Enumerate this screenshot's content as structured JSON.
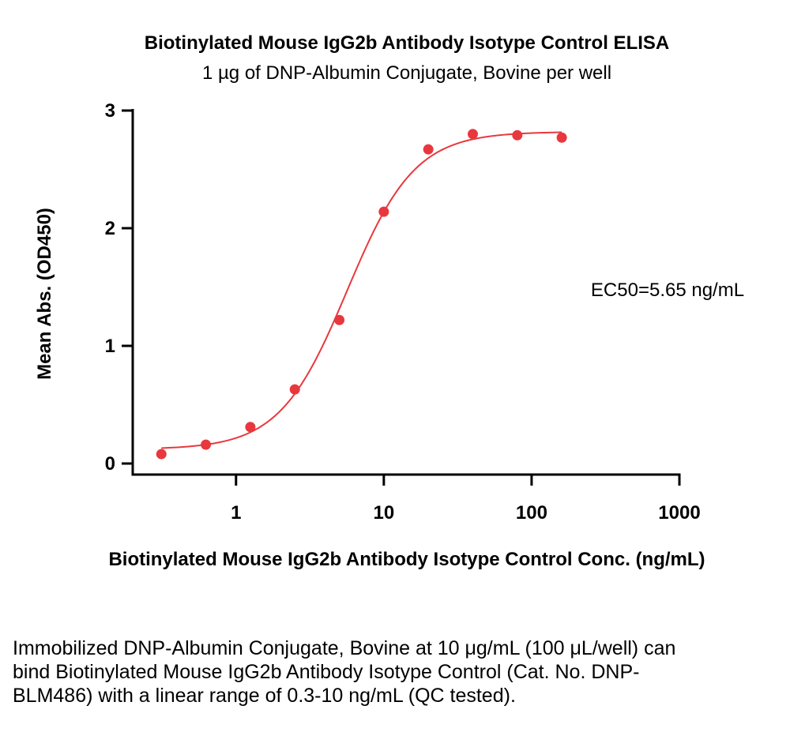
{
  "chart_data": {
    "type": "scatter",
    "title": "Biotinylated Mouse IgG2b Antibody Isotype Control ELISA",
    "subtitle": "1 µg of DNP-Albumin Conjugate, Bovine per well",
    "xlabel": "Biotinylated Mouse IgG2b Antibody Isotype Control Conc. (ng/mL)",
    "ylabel": "Mean Abs. (OD450)",
    "x_scale": "log",
    "xlim": [
      0.2,
      1000
    ],
    "ylim": [
      -0.1,
      3
    ],
    "x_ticks": [
      1,
      10,
      100,
      1000
    ],
    "x_tick_labels": [
      "1",
      "10",
      "100",
      "1000"
    ],
    "y_ticks": [
      0,
      1,
      2,
      3
    ],
    "y_tick_labels": [
      "0",
      "1",
      "2",
      "3"
    ],
    "grid": false,
    "series": [
      {
        "color": "#e8383d",
        "points": [
          {
            "x": 0.3125,
            "y": 0.08
          },
          {
            "x": 0.625,
            "y": 0.16
          },
          {
            "x": 1.25,
            "y": 0.31
          },
          {
            "x": 2.5,
            "y": 0.63
          },
          {
            "x": 5,
            "y": 1.22
          },
          {
            "x": 10,
            "y": 2.14
          },
          {
            "x": 20,
            "y": 2.67
          },
          {
            "x": 40,
            "y": 2.8
          },
          {
            "x": 80,
            "y": 2.79
          },
          {
            "x": 160,
            "y": 2.77
          }
        ],
        "fit": {
          "model": "4PL",
          "bottom": 0.12,
          "top": 2.82,
          "ec50": 5.65,
          "hill": 1.9,
          "x_range": [
            0.3125,
            160
          ]
        }
      }
    ],
    "annotation": "EC50=5.65 ng/mL"
  },
  "caption": "Immobilized DNP-Albumin Conjugate, Bovine at 10 μg/mL (100 μL/well) can bind Biotinylated Mouse IgG2b Antibody Isotype Control (Cat. No. DNP-BLM486) with a linear range of 0.3-10 ng/mL (QC tested).",
  "colors": {
    "series": "#e8383d",
    "axis": "#000000"
  }
}
